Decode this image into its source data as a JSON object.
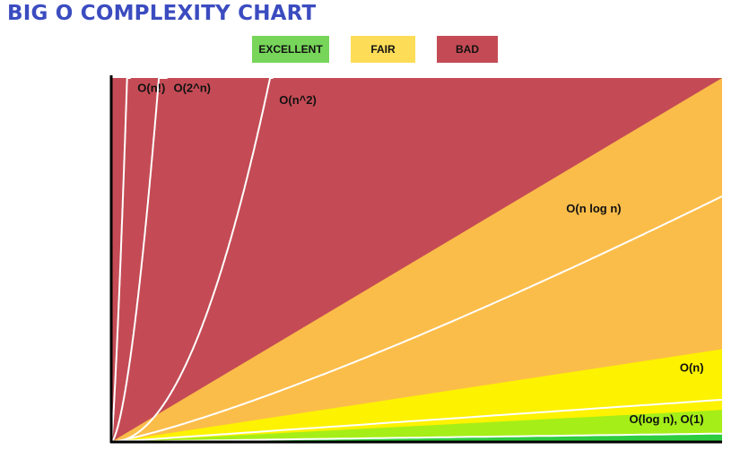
{
  "title": "BIG O COMPLEXITY CHART",
  "colors": {
    "title": "#3b4cc0",
    "bad": "#c44b55",
    "horrible": "#c44b55",
    "fair": "#fbbd4a",
    "good": "#fdf200",
    "excellent": "#a6ee18",
    "best": "#2ecc40",
    "curve": "#ffffff",
    "axis": "#000000"
  },
  "legend": [
    {
      "key": "excellent",
      "label": "EXCELLENT",
      "color": "#77d55a"
    },
    {
      "key": "fair",
      "label": "FAIR",
      "color": "#fddd58"
    },
    {
      "key": "bad",
      "label": "BAD",
      "color": "#c44b55"
    }
  ],
  "chart_data": {
    "type": "area",
    "title": "BIG O COMPLEXITY CHART",
    "xlabel": "",
    "ylabel": "",
    "xlim": [
      0,
      100
    ],
    "ylim": [
      0,
      100
    ],
    "grid": false,
    "legend_position": "top-center",
    "regions": [
      {
        "color_key": "horrible",
        "upper": "top"
      },
      {
        "color_key": "fair",
        "upper": "n^2"
      },
      {
        "color_key": "good",
        "upper": "n log n"
      },
      {
        "color_key": "excellent",
        "upper": "n"
      },
      {
        "color_key": "best",
        "upper": "log n"
      }
    ],
    "series": [
      {
        "name": "O(n!)",
        "label_anchor": [
          4.3,
          96.2
        ]
      },
      {
        "name": "O(2^n)",
        "label_anchor": [
          10.2,
          96.2
        ]
      },
      {
        "name": "O(n^2)",
        "label_anchor": [
          27.5,
          92.8
        ]
      },
      {
        "name": "O(n log n)",
        "label_anchor": [
          83.5,
          63.0
        ]
      },
      {
        "name": "O(n)",
        "label_anchor": [
          97,
          19.3
        ]
      },
      {
        "name": "O(log n), O(1)",
        "label_anchor": [
          97,
          5.2
        ]
      }
    ]
  }
}
